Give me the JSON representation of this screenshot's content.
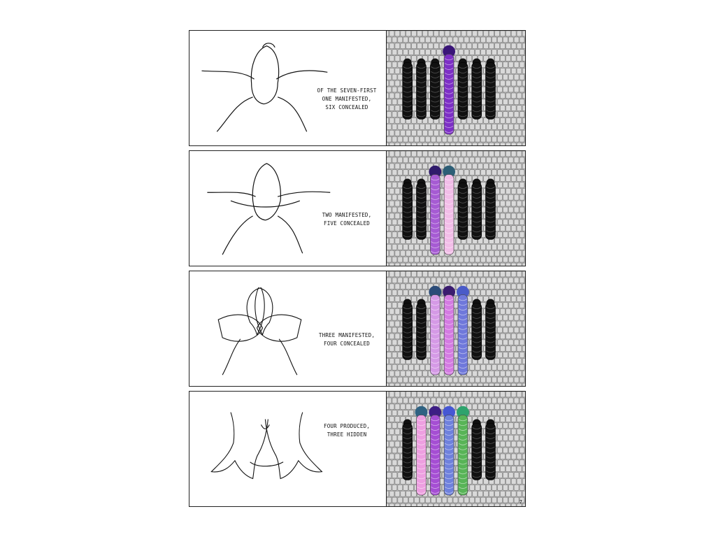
{
  "panels": [
    {
      "caption": [
        "OF THE SEVEN-FIRST",
        "ONE MANIFESTED,",
        "SIX CONCEALED"
      ],
      "figure": "frog-figure",
      "manifested": [
        "#7d2fc6"
      ],
      "halo": [
        "#3a1578"
      ]
    },
    {
      "caption": [
        "TWO MANIFESTED,",
        "FIVE CONCEALED"
      ],
      "figure": "open-frog-figure",
      "manifested": [
        "#a65bd3",
        "#f2bde8"
      ],
      "halo": [
        "#2f1b6b",
        "#2d5e76"
      ]
    },
    {
      "caption": [
        "THREE MANIFESTED,",
        "FOUR CONCEALED"
      ],
      "figure": "petal-figure",
      "manifested": [
        "#d59ae6",
        "#d47be2",
        "#6f78db"
      ],
      "halo": [
        "#2a4b78",
        "#3b1c6f",
        "#4a5bc8"
      ]
    },
    {
      "caption": [
        "FOUR PRODUCED,",
        "THREE HIDDEN"
      ],
      "figure": "unfurled-figure",
      "manifested": [
        "#ed9fe0",
        "#a54ed3",
        "#6f81dd",
        "#58b457"
      ],
      "halo": [
        "#2f6282",
        "#3d1e84",
        "#4657d4",
        "#2ea36d"
      ]
    }
  ],
  "page_number": "7",
  "colors": {
    "mosaic": "#d9d9d9",
    "grout": "#777777",
    "concealed": "#111111"
  }
}
